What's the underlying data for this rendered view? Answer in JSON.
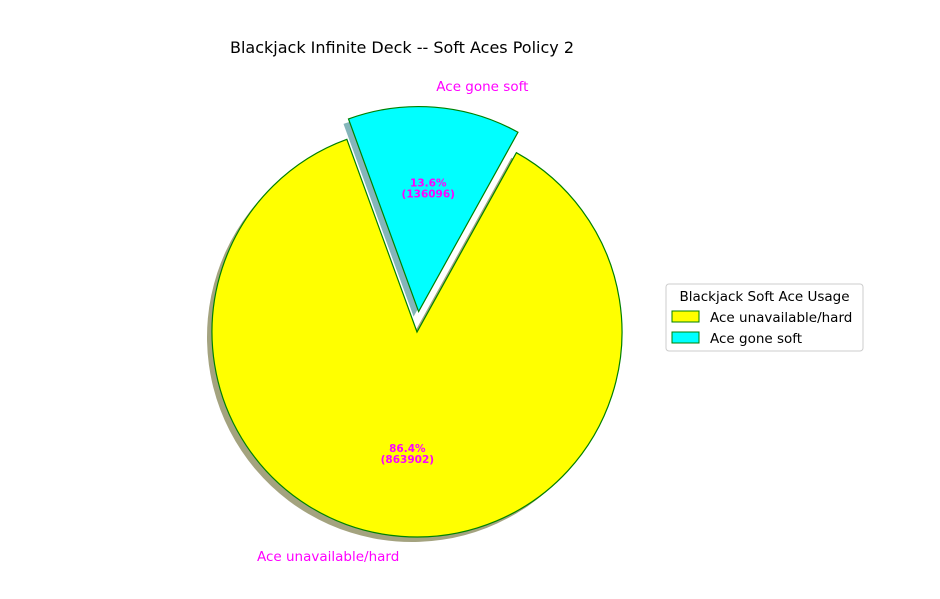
{
  "chart_data": {
    "type": "pie",
    "title": "Blackjack Infinite Deck -- Soft Aces Policy 2",
    "slices": [
      {
        "label": "Ace unavailable/hard",
        "value": 863902,
        "percent_label": "86.4%",
        "count_label": "(863902)",
        "color": "#ffff00",
        "explode": false
      },
      {
        "label": "Ace gone soft",
        "value": 136096,
        "percent_label": "13.6%",
        "count_label": "(136096)",
        "color": "#00ffff",
        "explode": true
      }
    ],
    "start_angle_deg": 110,
    "shadow": true,
    "edge_color": "#008000",
    "label_color": "#ff00ff",
    "legend": {
      "title": "Blackjack Soft Ace Usage",
      "placement": "center-right",
      "items": [
        "Ace unavailable/hard",
        "Ace gone soft"
      ]
    }
  }
}
